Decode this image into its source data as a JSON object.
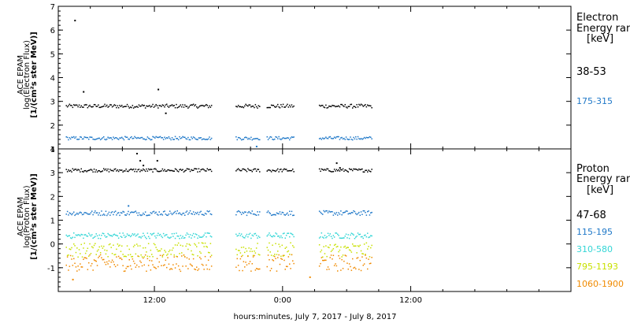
{
  "colors": {
    "black": "#000000",
    "blue": "#1f78c8",
    "cyan": "#33d6d6",
    "yellow": "#c8e000",
    "orange": "#f08a00"
  },
  "chart_data": [
    {
      "type": "scatter",
      "panel": "top",
      "ylabel_lines": [
        "ACE EPAM",
        "log(Electron Flux)",
        "[1/(cm²s ster MeV)]"
      ],
      "ylim": [
        1,
        7
      ],
      "yticks": [
        1,
        2,
        3,
        4,
        5,
        6,
        7
      ],
      "legend_title_lines": [
        "Electron",
        "Energy ran",
        "[keV]"
      ],
      "series": [
        {
          "name": "38-53",
          "color": "#000000",
          "level": 2.8,
          "jitter": 0.08,
          "spikes": [
            [
              4.5,
              6.4
            ],
            [
              5.3,
              3.4
            ],
            [
              12.3,
              3.5
            ],
            [
              13.0,
              2.5
            ]
          ]
        },
        {
          "name": "175-315",
          "color": "#1f78c8",
          "level": 1.45,
          "jitter": 0.07,
          "spikes": [
            [
              21.5,
              1.1
            ]
          ]
        }
      ]
    },
    {
      "type": "scatter",
      "panel": "bottom",
      "ylabel_lines": [
        "ACE EPAM",
        "log(Proton Flux)",
        "[1/(cm²s ster MeV)]"
      ],
      "ylim": [
        -2,
        4
      ],
      "yticks": [
        -1,
        0,
        1,
        2,
        3,
        4
      ],
      "legend_title_lines": [
        "Proton",
        "Energy ran",
        "[keV]"
      ],
      "series": [
        {
          "name": "47-68",
          "color": "#000000",
          "level": 3.1,
          "jitter": 0.07,
          "spikes": [
            [
              10.3,
              3.8
            ],
            [
              10.6,
              3.5
            ],
            [
              10.9,
              3.3
            ],
            [
              12.2,
              3.5
            ],
            [
              29.0,
              3.4
            ],
            [
              29.3,
              3.2
            ]
          ]
        },
        {
          "name": "115-195",
          "color": "#1f78c8",
          "level": 1.3,
          "jitter": 0.1,
          "spikes": [
            [
              9.5,
              1.6
            ]
          ]
        },
        {
          "name": "310-580",
          "color": "#33d6d6",
          "level": 0.35,
          "jitter": 0.12,
          "spikes": []
        },
        {
          "name": "795-1193",
          "color": "#c8e000",
          "level": -0.25,
          "jitter": 0.3,
          "spikes": []
        },
        {
          "name": "1060-1900",
          "color": "#f08a00",
          "level": -0.8,
          "jitter": 0.35,
          "spikes": [
            [
              4.3,
              -1.5
            ],
            [
              26.5,
              -1.4
            ]
          ]
        }
      ]
    }
  ],
  "shared_x": {
    "xlabel": "hours:minutes,  July  7, 2017 - July  8, 2017",
    "xlim_hours": [
      3,
      51
    ],
    "ticks": [
      {
        "hour": 12,
        "label": "12:00"
      },
      {
        "hour": 24,
        "label": "0:00"
      },
      {
        "hour": 36,
        "label": "12:00"
      }
    ],
    "data_segments_hours": [
      [
        3.7,
        17.3
      ],
      [
        19.6,
        21.9
      ],
      [
        22.5,
        25.1
      ],
      [
        27.4,
        32.4
      ]
    ]
  }
}
